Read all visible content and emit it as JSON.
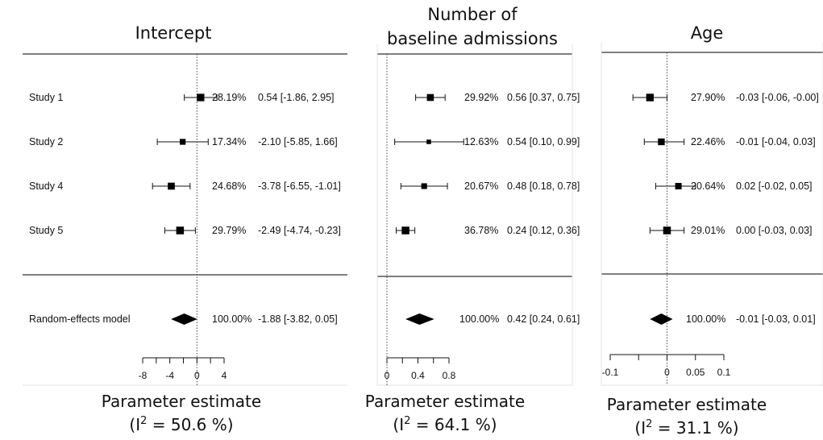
{
  "chart_data": [
    {
      "type": "forest",
      "title_lines": [
        "Intercept"
      ],
      "caption": "Parameter estimate",
      "heterogeneity": "50.6 %",
      "xticks": [
        -8,
        -6,
        -4,
        -2,
        0,
        2,
        4
      ],
      "xtick_labels": [
        "-8",
        "-4",
        "0",
        "4"
      ],
      "xlim": [
        -8,
        4
      ],
      "reference_line": 0,
      "show_study_labels": true,
      "studies": [
        {
          "label": "Study 1",
          "estimate": 0.54,
          "lower": -1.86,
          "upper": 2.95,
          "weight": 28.19,
          "weight_text": "28.19%",
          "ci_text": "0.54 [-1.86,  2.95]"
        },
        {
          "label": "Study 2",
          "estimate": -2.1,
          "lower": -5.85,
          "upper": 1.66,
          "weight": 17.34,
          "weight_text": "17.34%",
          "ci_text": "-2.10 [-5.85,  1.66]"
        },
        {
          "label": "Study 4",
          "estimate": -3.78,
          "lower": -6.55,
          "upper": -1.01,
          "weight": 24.68,
          "weight_text": "24.68%",
          "ci_text": "-3.78 [-6.55, -1.01]"
        },
        {
          "label": "Study 5",
          "estimate": -2.49,
          "lower": -4.74,
          "upper": -0.23,
          "weight": 29.79,
          "weight_text": "29.79%",
          "ci_text": "-2.49 [-4.74, -0.23]"
        }
      ],
      "pooled": {
        "label": "Random-effects model",
        "estimate": -1.88,
        "lower": -3.82,
        "upper": 0.05,
        "weight_text": "100.00%",
        "ci_text": "-1.88 [-3.82,  0.05]"
      }
    },
    {
      "type": "forest",
      "title_lines": [
        "Number of",
        "baseline admissions"
      ],
      "caption": "Parameter estimate",
      "heterogeneity": "64.1 %",
      "xticks": [
        0,
        0.2,
        0.4,
        0.6,
        0.8
      ],
      "xtick_labels": [
        "0",
        "0.4",
        "0.8"
      ],
      "xlim": [
        0,
        0.8
      ],
      "reference_line": 0,
      "show_study_labels": false,
      "studies": [
        {
          "label": "Study 1",
          "estimate": 0.56,
          "lower": 0.37,
          "upper": 0.75,
          "weight": 29.92,
          "weight_text": "29.92%",
          "ci_text": "0.56 [0.37, 0.75]"
        },
        {
          "label": "Study 2",
          "estimate": 0.54,
          "lower": 0.1,
          "upper": 0.99,
          "weight": 12.63,
          "weight_text": "12.63%",
          "ci_text": "0.54 [0.10, 0.99]"
        },
        {
          "label": "Study 4",
          "estimate": 0.48,
          "lower": 0.18,
          "upper": 0.78,
          "weight": 20.67,
          "weight_text": "20.67%",
          "ci_text": "0.48 [0.18, 0.78]"
        },
        {
          "label": "Study 5",
          "estimate": 0.24,
          "lower": 0.12,
          "upper": 0.36,
          "weight": 36.78,
          "weight_text": "36.78%",
          "ci_text": "0.24 [0.12, 0.36]"
        }
      ],
      "pooled": {
        "label": "Random-effects model",
        "estimate": 0.42,
        "lower": 0.24,
        "upper": 0.61,
        "weight_text": "100.00%",
        "ci_text": "0.42 [0.24, 0.61]"
      }
    },
    {
      "type": "forest",
      "title_lines": [
        "Age"
      ],
      "caption": "Parameter estimate",
      "heterogeneity": "31.1 %",
      "xticks": [
        -0.1,
        -0.05,
        0,
        0.05,
        0.1
      ],
      "xtick_labels": [
        "-0.1",
        "0",
        "0.05",
        "0.1"
      ],
      "xlim": [
        -0.1,
        0.1
      ],
      "reference_line": 0,
      "show_study_labels": false,
      "studies": [
        {
          "label": "Study 1",
          "estimate": -0.03,
          "lower": -0.06,
          "upper": -0.0,
          "weight": 27.9,
          "weight_text": "27.90%",
          "ci_text": "-0.03 [-0.06, -0.00]"
        },
        {
          "label": "Study 2",
          "estimate": -0.01,
          "lower": -0.04,
          "upper": 0.03,
          "weight": 22.46,
          "weight_text": "22.46%",
          "ci_text": "-0.01 [-0.04,  0.03]"
        },
        {
          "label": "Study 4",
          "estimate": 0.02,
          "lower": -0.02,
          "upper": 0.05,
          "weight": 20.64,
          "weight_text": "20.64%",
          "ci_text": "0.02 [-0.02,  0.05]"
        },
        {
          "label": "Study 5",
          "estimate": 0.0,
          "lower": -0.03,
          "upper": 0.03,
          "weight": 29.01,
          "weight_text": "29.01%",
          "ci_text": "0.00 [-0.03,  0.03]"
        }
      ],
      "pooled": {
        "label": "Random-effects model",
        "estimate": -0.01,
        "lower": -0.03,
        "upper": 0.01,
        "weight_text": "100.00%",
        "ci_text": "-0.01 [-0.03,  0.01]"
      }
    }
  ]
}
